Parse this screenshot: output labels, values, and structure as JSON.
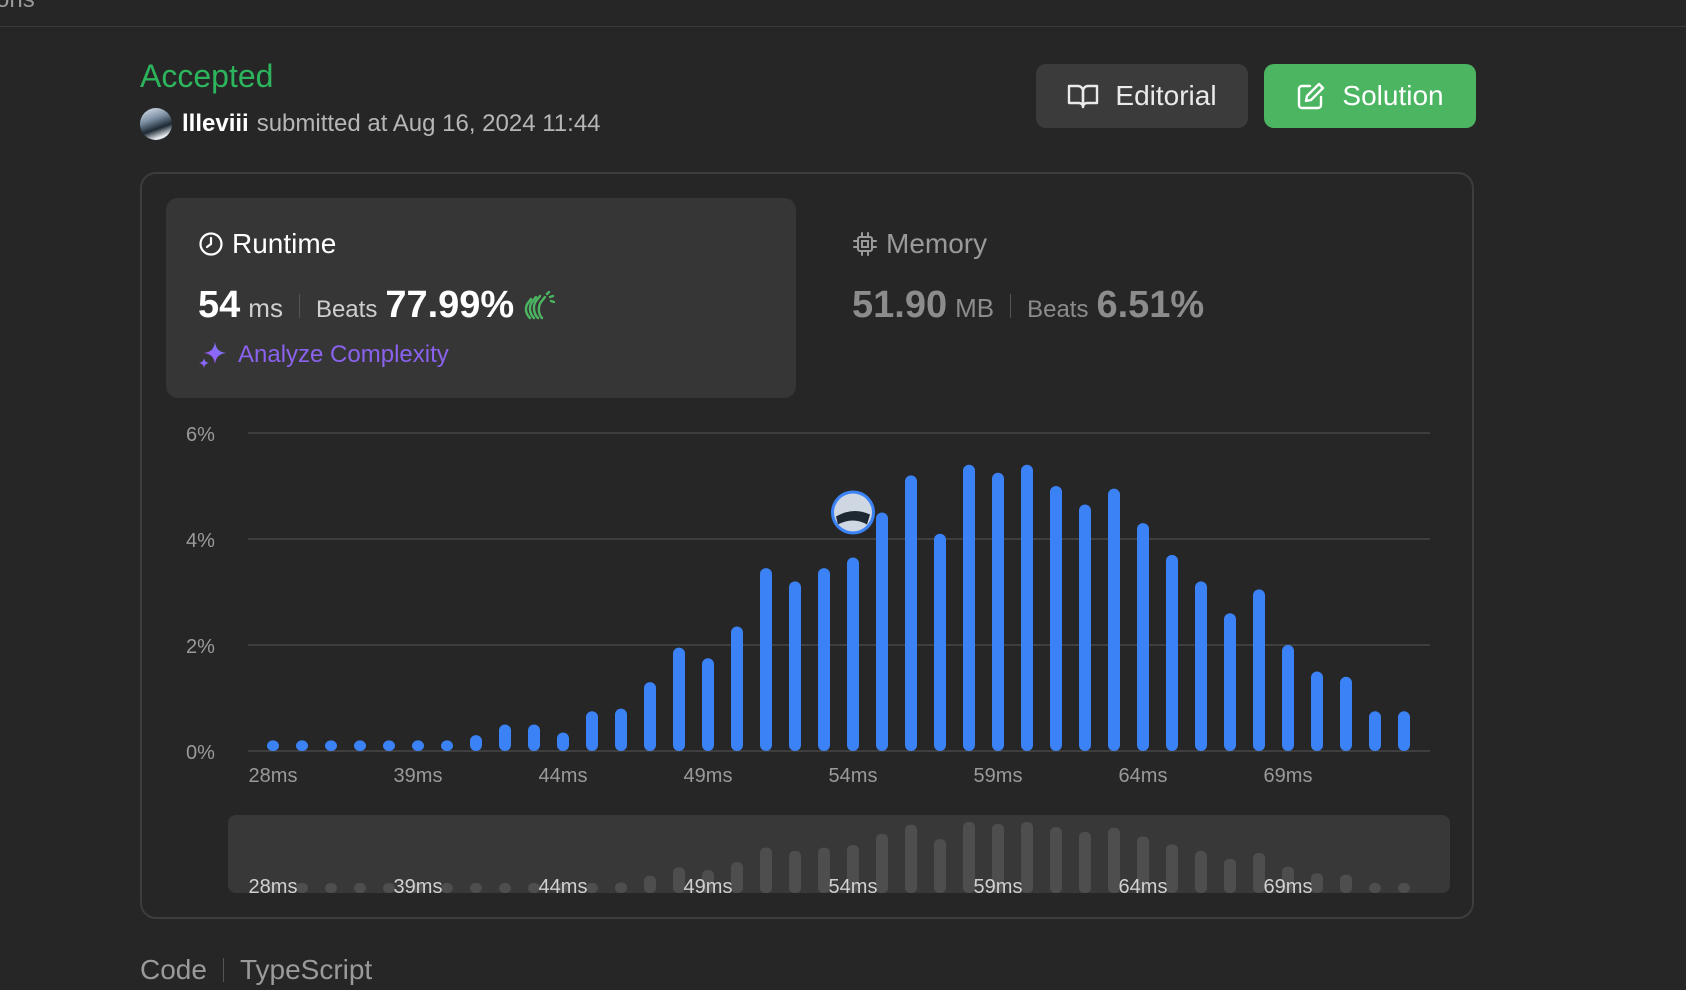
{
  "header": {
    "tab_fragment": "ons"
  },
  "submission": {
    "status": "Accepted",
    "username": "llleviii",
    "submitted_text": "submitted at Aug 16, 2024 11:44",
    "status_color": "#2db55d"
  },
  "buttons": {
    "editorial": "Editorial",
    "solution": "Solution"
  },
  "runtime": {
    "title": "Runtime",
    "value": "54",
    "unit": "ms",
    "beats_label": "Beats",
    "beats_pct": "77.99%",
    "analyze_label": "Analyze Complexity"
  },
  "memory": {
    "title": "Memory",
    "value": "51.90",
    "unit": "MB",
    "beats_label": "Beats",
    "beats_pct": "6.51%"
  },
  "chart_data": {
    "type": "bar",
    "xlabel": "",
    "ylabel": "",
    "ylim": [
      0,
      6
    ],
    "ytick_labels": [
      "0%",
      "2%",
      "4%",
      "6%"
    ],
    "xtick_labels": [
      "28ms",
      "39ms",
      "44ms",
      "49ms",
      "54ms",
      "59ms",
      "64ms",
      "69ms"
    ],
    "xtick_positions": [
      0,
      5,
      10,
      15,
      20,
      25,
      30,
      35
    ],
    "values": [
      0.2,
      0.2,
      0.2,
      0.2,
      0.2,
      0.2,
      0.2,
      0.3,
      0.5,
      0.5,
      0.35,
      0.75,
      0.8,
      1.3,
      1.95,
      1.75,
      2.35,
      3.45,
      3.2,
      3.45,
      3.65,
      4.5,
      5.2,
      4.1,
      5.4,
      5.25,
      5.4,
      5.0,
      4.65,
      4.95,
      4.3,
      3.7,
      3.2,
      2.6,
      3.05,
      2.0,
      1.5,
      1.4,
      0.75,
      0.75
    ],
    "highlight_index": 20,
    "bar_color": "#3b82f6",
    "minimap_bar_color": "#4e4e4e",
    "grid": true
  },
  "code_section": {
    "label": "Code",
    "language": "TypeScript"
  }
}
